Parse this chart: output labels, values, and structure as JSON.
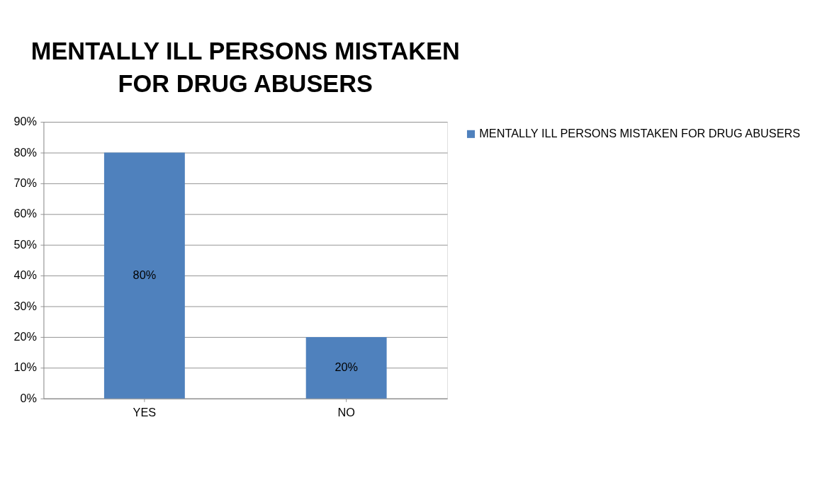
{
  "chart_data": {
    "type": "bar",
    "title": "MENTALLY ILL PERSONS MISTAKEN FOR DRUG ABUSERS",
    "categories": [
      "YES",
      "NO"
    ],
    "series": [
      {
        "name": "MENTALLY ILL PERSONS MISTAKEN FOR DRUG ABUSERS",
        "color": "#4f81bd",
        "values": [
          80,
          20
        ],
        "value_labels": [
          "80%",
          "20%"
        ]
      }
    ],
    "ylim": [
      0,
      90
    ],
    "yticks": [
      {
        "value": 0,
        "label": "0%"
      },
      {
        "value": 10,
        "label": "10%"
      },
      {
        "value": 20,
        "label": "20%"
      },
      {
        "value": 30,
        "label": "30%"
      },
      {
        "value": 40,
        "label": "40%"
      },
      {
        "value": 50,
        "label": "50%"
      },
      {
        "value": 60,
        "label": "60%"
      },
      {
        "value": 70,
        "label": "70%"
      },
      {
        "value": 80,
        "label": "80%"
      },
      {
        "value": 90,
        "label": "90%"
      }
    ],
    "grid": "y",
    "legend": "right"
  }
}
